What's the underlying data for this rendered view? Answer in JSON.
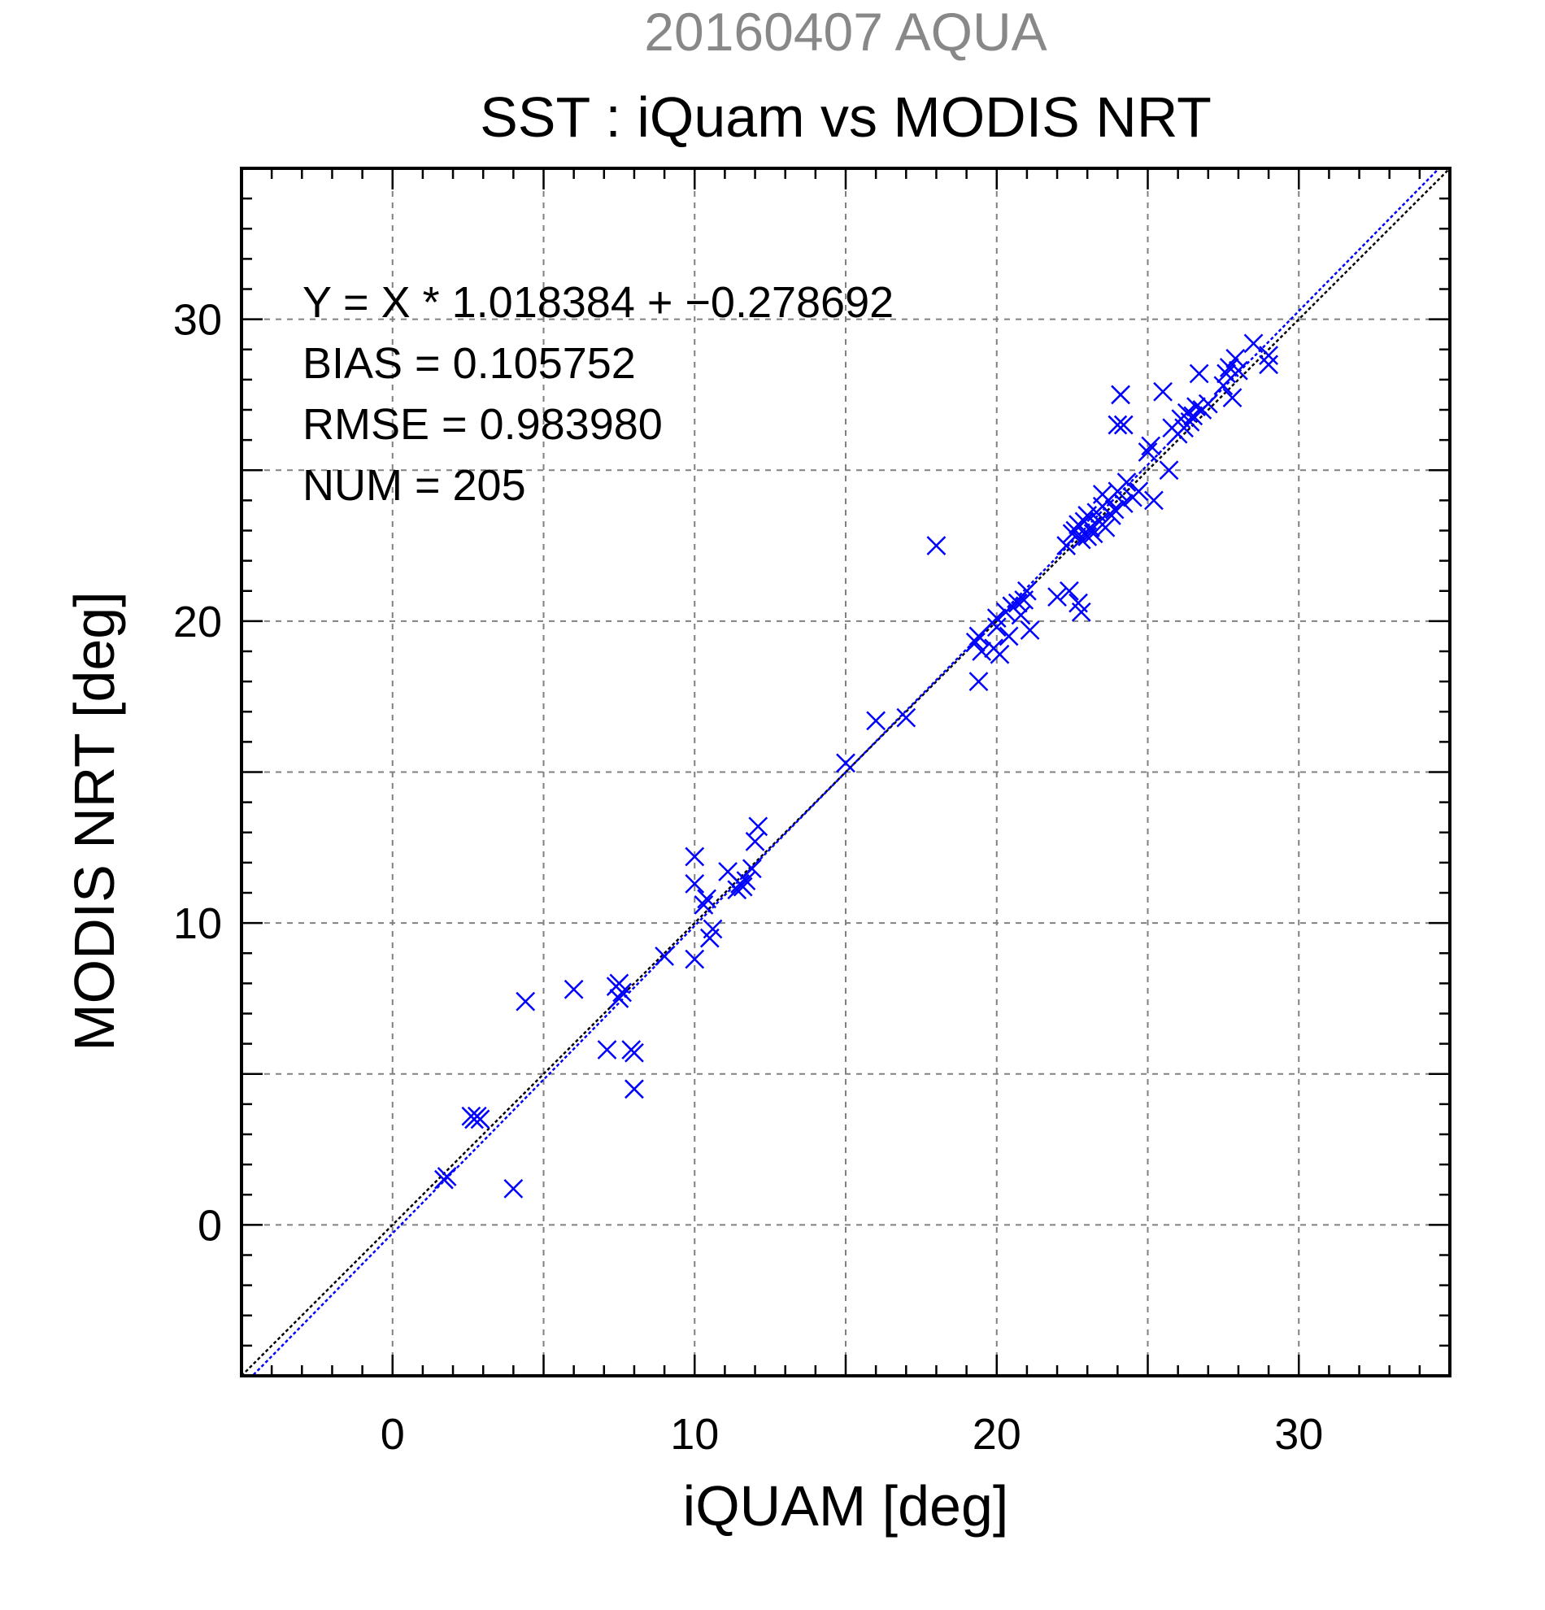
{
  "header": {
    "supertitle": "20160407 AQUA",
    "title": "SST : iQuam vs MODIS NRT"
  },
  "colors": {
    "supertitle": "#888888",
    "points": "#0000ff",
    "fit_line": "#0000ff",
    "identity_line": "#000000",
    "grid": "#808080",
    "axes": "#000000"
  },
  "stats": {
    "line1": "Y = X * 1.018384 + −0.278692",
    "line2": "BIAS = 0.105752",
    "line3": "RMSE = 0.983980",
    "line4": "NUM = 205"
  },
  "chart_data": {
    "type": "scatter",
    "title": "SST : iQuam vs MODIS NRT",
    "xlabel": "iQUAM [deg]",
    "ylabel": "MODIS NRT [deg]",
    "xlim": [
      -5,
      35
    ],
    "ylim": [
      -5,
      35
    ],
    "xticks": [
      0,
      10,
      20,
      30
    ],
    "yticks": [
      0,
      10,
      20,
      30
    ],
    "x_minor_step": 1,
    "y_minor_step": 1,
    "grid": true,
    "grid_step": 5,
    "marker": "x",
    "fit": {
      "slope": 1.018384,
      "intercept": -0.278692
    },
    "identity_line": true,
    "points": [
      [
        1.7,
        1.5
      ],
      [
        1.8,
        1.6
      ],
      [
        2.6,
        3.6
      ],
      [
        2.7,
        3.5
      ],
      [
        2.8,
        3.6
      ],
      [
        2.9,
        3.5
      ],
      [
        4.0,
        1.2
      ],
      [
        4.4,
        7.4
      ],
      [
        6.0,
        7.8
      ],
      [
        7.1,
        5.8
      ],
      [
        7.4,
        7.9
      ],
      [
        7.5,
        8.0
      ],
      [
        7.5,
        7.5
      ],
      [
        7.6,
        7.7
      ],
      [
        7.9,
        5.8
      ],
      [
        8.0,
        5.7
      ],
      [
        8.0,
        4.5
      ],
      [
        9.0,
        8.9
      ],
      [
        10.0,
        8.8
      ],
      [
        10.0,
        11.3
      ],
      [
        10.0,
        12.2
      ],
      [
        10.3,
        10.6
      ],
      [
        10.4,
        10.8
      ],
      [
        10.5,
        9.5
      ],
      [
        10.6,
        9.8
      ],
      [
        11.1,
        11.7
      ],
      [
        11.4,
        11.1
      ],
      [
        11.5,
        11.3
      ],
      [
        11.6,
        11.2
      ],
      [
        11.7,
        11.4
      ],
      [
        11.9,
        11.8
      ],
      [
        12.0,
        12.7
      ],
      [
        12.1,
        13.2
      ],
      [
        15.0,
        15.3
      ],
      [
        16.0,
        16.7
      ],
      [
        17.0,
        16.8
      ],
      [
        18.0,
        22.5
      ],
      [
        19.3,
        19.3
      ],
      [
        19.4,
        19.5
      ],
      [
        19.5,
        19.0
      ],
      [
        19.4,
        18.0
      ],
      [
        19.9,
        19.1
      ],
      [
        20.0,
        19.8
      ],
      [
        20.0,
        20.1
      ],
      [
        20.1,
        18.9
      ],
      [
        20.3,
        20.3
      ],
      [
        20.4,
        19.5
      ],
      [
        20.5,
        20.5
      ],
      [
        20.7,
        20.6
      ],
      [
        20.8,
        20.2
      ],
      [
        20.9,
        20.7
      ],
      [
        21.0,
        21.0
      ],
      [
        21.1,
        19.7
      ],
      [
        22.0,
        20.8
      ],
      [
        22.4,
        21.0
      ],
      [
        22.7,
        20.6
      ],
      [
        22.8,
        20.3
      ],
      [
        22.3,
        22.5
      ],
      [
        22.5,
        22.9
      ],
      [
        22.6,
        23.0
      ],
      [
        22.7,
        23.2
      ],
      [
        22.8,
        22.7
      ],
      [
        22.9,
        23.3
      ],
      [
        23.0,
        22.8
      ],
      [
        23.0,
        23.5
      ],
      [
        23.1,
        23.1
      ],
      [
        23.2,
        22.9
      ],
      [
        23.3,
        23.6
      ],
      [
        23.4,
        23.3
      ],
      [
        23.5,
        23.8
      ],
      [
        23.5,
        24.2
      ],
      [
        23.6,
        23.1
      ],
      [
        23.7,
        24.0
      ],
      [
        23.8,
        23.5
      ],
      [
        23.9,
        23.7
      ],
      [
        24.0,
        24.3
      ],
      [
        24.0,
        26.5
      ],
      [
        24.1,
        27.5
      ],
      [
        24.2,
        26.5
      ],
      [
        24.2,
        23.9
      ],
      [
        24.3,
        24.6
      ],
      [
        24.5,
        24.1
      ],
      [
        24.7,
        24.3
      ],
      [
        25.0,
        25.6
      ],
      [
        25.1,
        25.8
      ],
      [
        25.2,
        24.0
      ],
      [
        25.5,
        27.6
      ],
      [
        25.7,
        25.0
      ],
      [
        25.8,
        26.4
      ],
      [
        26.0,
        26.2
      ],
      [
        26.1,
        26.7
      ],
      [
        26.2,
        26.4
      ],
      [
        26.3,
        26.9
      ],
      [
        26.4,
        26.6
      ],
      [
        26.5,
        26.8
      ],
      [
        26.6,
        27.1
      ],
      [
        26.7,
        28.2
      ],
      [
        26.8,
        27.0
      ],
      [
        27.0,
        27.2
      ],
      [
        27.5,
        27.8
      ],
      [
        27.6,
        28.2
      ],
      [
        27.7,
        28.4
      ],
      [
        27.8,
        27.4
      ],
      [
        27.9,
        28.7
      ],
      [
        28.0,
        28.3
      ],
      [
        28.5,
        29.2
      ],
      [
        29.0,
        28.8
      ],
      [
        29.0,
        28.5
      ]
    ]
  }
}
